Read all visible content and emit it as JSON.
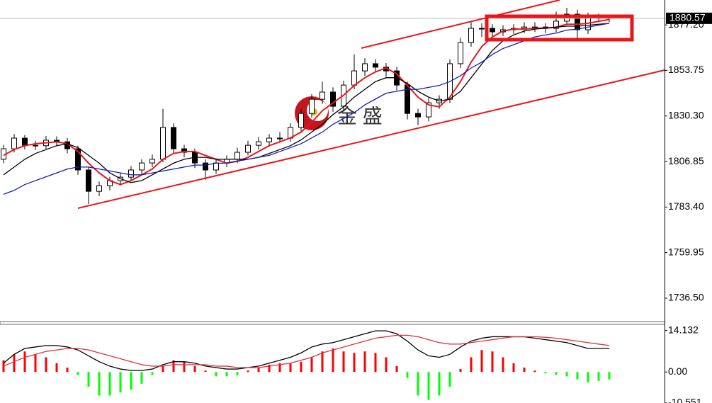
{
  "chart_data": [
    {
      "type": "candlestick",
      "up_color": "#ffffff",
      "down_color": "#000000",
      "outline_color": "#000000",
      "open": [
        1808.0,
        1813.4,
        1818.9,
        1815.2,
        1815.0,
        1817.8,
        1817.0,
        1813.4,
        1802.5,
        1791.5,
        1794.4,
        1797.0,
        1798.8,
        1802.5,
        1806.1,
        1808.0,
        1824.4,
        1813.4,
        1811.6,
        1806.1,
        1802.5,
        1806.1,
        1808.0,
        1811.6,
        1815.2,
        1817.0,
        1818.9,
        1818.9,
        1824.4,
        1831.6,
        1838.9,
        1842.6,
        1835.3,
        1846.2,
        1853.5,
        1857.2,
        1855.4,
        1853.5,
        1846.2,
        1831.6,
        1829.8,
        1837.1,
        1838.9,
        1857.2,
        1868.1,
        1875.4,
        1875.4,
        1873.6,
        1874.7,
        1875.4,
        1876.1,
        1876.1,
        1875.4,
        1879.1,
        1882.7,
        1874.7,
        1880.9,
        1880.9
      ],
      "high": [
        1815.4,
        1821.0,
        1820.5,
        1817.5,
        1820.0,
        1819.8,
        1819.0,
        1815.0,
        1804.0,
        1796.5,
        1799.0,
        1801.0,
        1804.5,
        1808.0,
        1810.5,
        1834.0,
        1826.5,
        1815.5,
        1813.5,
        1808.0,
        1808.5,
        1810.0,
        1814.0,
        1817.5,
        1819.5,
        1821.0,
        1822.0,
        1826.5,
        1834.0,
        1841.5,
        1848.0,
        1845.0,
        1848.5,
        1862.0,
        1860.0,
        1859.5,
        1857.5,
        1855.5,
        1848.0,
        1834.0,
        1839.5,
        1841.0,
        1859.5,
        1870.5,
        1878.5,
        1878.0,
        1877.5,
        1877.0,
        1877.5,
        1878.5,
        1878.5,
        1878.0,
        1884.0,
        1886.0,
        1885.0,
        1883.5,
        1883.0,
        1882.5
      ],
      "low": [
        1806.0,
        1811.5,
        1813.0,
        1812.8,
        1813.0,
        1815.0,
        1811.0,
        1800.0,
        1785.0,
        1789.0,
        1792.0,
        1794.5,
        1797.0,
        1800.5,
        1804.0,
        1806.5,
        1811.0,
        1809.0,
        1803.5,
        1797.5,
        1800.5,
        1804.0,
        1806.0,
        1810.0,
        1813.0,
        1815.0,
        1816.5,
        1817.0,
        1822.5,
        1829.5,
        1836.5,
        1832.5,
        1833.5,
        1844.0,
        1851.0,
        1853.0,
        1850.5,
        1843.5,
        1828.5,
        1825.5,
        1827.5,
        1834.0,
        1837.0,
        1855.0,
        1866.0,
        1871.0,
        1871.0,
        1871.5,
        1872.5,
        1873.0,
        1873.5,
        1873.0,
        1873.5,
        1877.0,
        1870.0,
        1872.5,
        1878.5,
        1878.5
      ],
      "close": [
        1813.4,
        1818.9,
        1815.2,
        1815.0,
        1817.8,
        1817.0,
        1813.4,
        1802.5,
        1791.5,
        1794.4,
        1797.0,
        1798.8,
        1802.5,
        1806.1,
        1808.0,
        1824.4,
        1813.4,
        1811.6,
        1806.1,
        1802.5,
        1806.1,
        1808.0,
        1811.6,
        1815.2,
        1817.0,
        1818.9,
        1818.9,
        1824.4,
        1831.6,
        1838.9,
        1842.6,
        1835.3,
        1846.2,
        1853.5,
        1857.2,
        1855.4,
        1853.5,
        1846.2,
        1831.6,
        1829.8,
        1837.1,
        1838.9,
        1857.2,
        1868.1,
        1875.4,
        1875.4,
        1873.6,
        1874.7,
        1875.4,
        1876.1,
        1876.1,
        1875.4,
        1879.1,
        1882.7,
        1874.7,
        1880.9,
        1880.9,
        1880.57
      ],
      "series": [
        {
          "color": "#e8161b",
          "values": [
            1810,
            1813,
            1815,
            1816,
            1816.5,
            1817,
            1816,
            1812,
            1806,
            1801,
            1797,
            1795,
            1797,
            1800,
            1803,
            1808,
            1811,
            1812,
            1812,
            1810,
            1808,
            1806,
            1807,
            1809,
            1812,
            1815,
            1817,
            1819,
            1822,
            1827,
            1833,
            1837,
            1841,
            1846,
            1850,
            1853,
            1855,
            1852,
            1846,
            1840,
            1836,
            1835,
            1840,
            1848,
            1858,
            1866,
            1871,
            1874,
            1875,
            1875,
            1875.5,
            1875.5,
            1876,
            1877.5,
            1877.5,
            1878,
            1879,
            1880
          ]
        },
        {
          "color": "#000000",
          "values": [
            1800,
            1804,
            1808,
            1811,
            1813,
            1815,
            1816,
            1814,
            1810,
            1806,
            1801,
            1798,
            1796,
            1797,
            1800,
            1803,
            1806,
            1808,
            1809,
            1809,
            1808,
            1808,
            1808,
            1808,
            1809,
            1811,
            1813,
            1815,
            1818,
            1822,
            1826,
            1831,
            1835,
            1840,
            1844,
            1848,
            1850,
            1850,
            1847,
            1843,
            1840,
            1838,
            1839,
            1843,
            1850,
            1857,
            1864,
            1869,
            1872,
            1874,
            1875,
            1875.5,
            1876,
            1876.5,
            1876.5,
            1877,
            1877.5,
            1878
          ]
        },
        {
          "color": "#1020b0",
          "values": [
            1790,
            1792,
            1795,
            1797,
            1799,
            1801,
            1803,
            1804,
            1804,
            1803,
            1802,
            1801,
            1800,
            1800,
            1801,
            1802,
            1803,
            1804,
            1805,
            1805,
            1806,
            1806,
            1807,
            1808,
            1809,
            1810,
            1812,
            1814,
            1816,
            1819,
            1822,
            1826,
            1829,
            1832,
            1836,
            1839,
            1842,
            1843,
            1844,
            1844,
            1845,
            1846,
            1848,
            1851,
            1855,
            1858,
            1862,
            1865,
            1867,
            1869,
            1871,
            1872,
            1873,
            1874.5,
            1875,
            1876,
            1877,
            1878
          ]
        }
      ],
      "ylim": [
        1724.1,
        1890.0
      ],
      "yticks": [
        {
          "value": 1877.2,
          "label": "1877.20"
        },
        1853.75,
        {
          "value": 1830.3,
          "label": "1830.30"
        },
        1806.85,
        {
          "value": 1783.4,
          "label": "1783.40"
        },
        1759.95,
        {
          "value": 1736.5,
          "label": "1736.50"
        }
      ]
    },
    {
      "type": "bar",
      "positive_color": "#ff0000",
      "negative_color": "#00ff00",
      "values": [
        4,
        6,
        7,
        6,
        5,
        3,
        1.5,
        -1,
        -5,
        -8,
        -8,
        -7,
        -6,
        -4,
        -1,
        2,
        4,
        3.5,
        2,
        0.5,
        -1.5,
        -1.5,
        -1,
        0.5,
        1.5,
        2.5,
        3,
        3,
        3.5,
        5,
        7,
        8,
        7,
        6.5,
        7,
        6.5,
        5,
        2,
        -2,
        -8,
        -9.5,
        -8,
        -5,
        1,
        5,
        7.5,
        7,
        5,
        3,
        1.5,
        0.5,
        -0.5,
        -1,
        -1.5,
        -2.5,
        -3.5,
        -3,
        -2.5
      ],
      "series": [
        {
          "color": "#000000",
          "values": [
            3,
            6,
            8,
            8.5,
            9,
            9,
            8.5,
            7.5,
            5.5,
            3.5,
            2,
            1,
            0.5,
            0.5,
            1,
            2.5,
            3.5,
            3.5,
            3,
            2,
            1.5,
            1,
            1,
            1.5,
            2,
            3,
            4,
            5,
            6.5,
            8.5,
            9.5,
            10,
            11,
            12,
            13,
            14,
            14,
            13,
            10.5,
            7.5,
            5.5,
            5,
            6,
            8.5,
            10.5,
            11.5,
            12,
            12,
            12,
            12,
            11.5,
            11,
            10.5,
            10,
            9,
            8,
            8,
            8
          ]
        },
        {
          "color": "#e03040",
          "values": [
            2,
            3.5,
            5,
            6,
            7,
            7.5,
            8,
            8,
            7.5,
            6.5,
            5.5,
            4.5,
            3.5,
            2.5,
            2,
            2,
            2.5,
            2.5,
            2.5,
            2.5,
            2,
            2,
            1.5,
            1.5,
            1.5,
            2,
            2.5,
            3,
            4,
            5,
            6.5,
            7.5,
            8.5,
            9.5,
            10.5,
            11.5,
            12,
            12.5,
            12.5,
            12,
            11,
            10,
            9.5,
            9.5,
            10,
            10.5,
            11,
            11.5,
            12,
            12,
            12,
            11.8,
            11.5,
            11,
            10.5,
            10,
            9.5,
            9
          ]
        }
      ],
      "ylim": [
        -10.551,
        16.2
      ],
      "yticks": [
        14.132,
        {
          "value": 0,
          "label": "0.00"
        },
        -10.551
      ]
    }
  ],
  "watermark": "金 盛"
}
